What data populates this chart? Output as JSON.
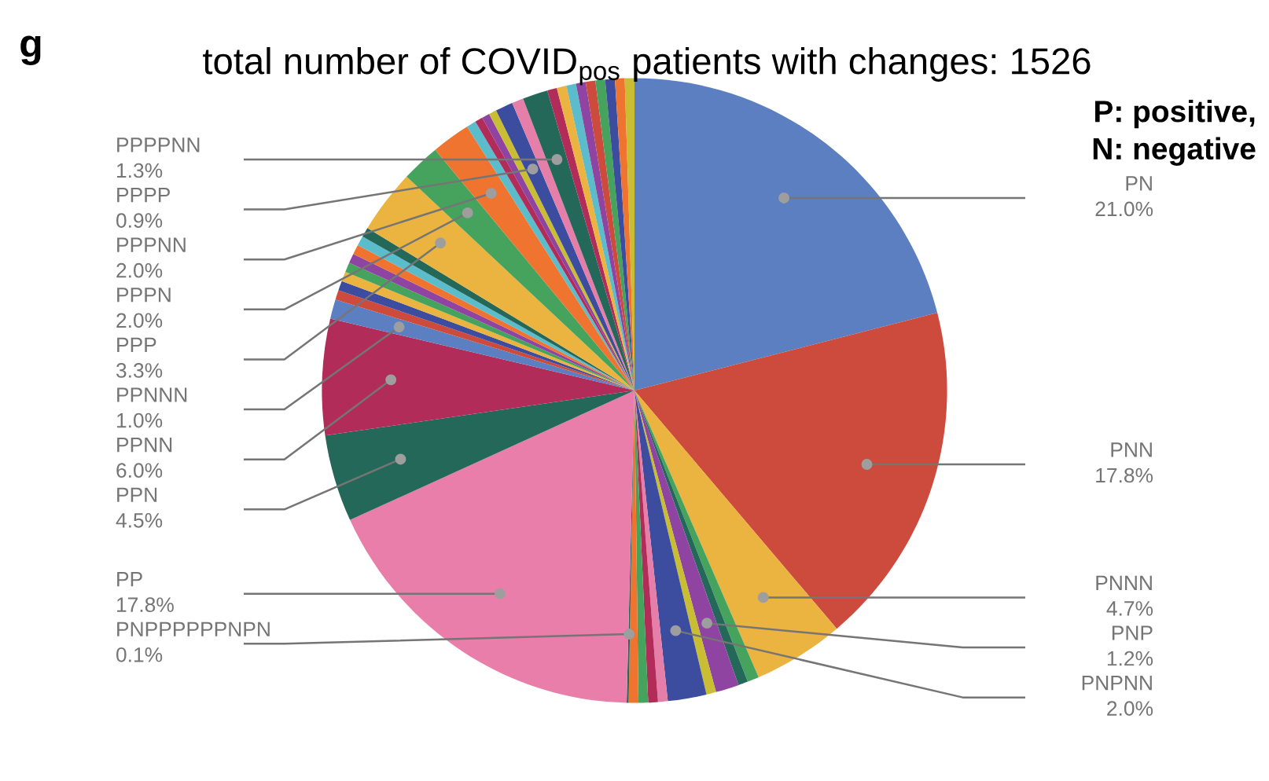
{
  "chart_data": {
    "type": "pie",
    "title": "total number of COVID$_{pos}$ patients with changes: 1526",
    "annotations": [
      "g",
      "P: positive,\nN: negative"
    ],
    "categories": [
      "PN",
      "PNN",
      "PNNN",
      null,
      null,
      "PNP",
      null,
      "PNPNN",
      null,
      null,
      null,
      null,
      "PNPPPPPPNPN",
      "PP",
      "PPN",
      "PPNN",
      "PPNNN",
      null,
      null,
      null,
      null,
      null,
      null,
      null,
      null,
      "PPP",
      "PPPN",
      "PPPNN",
      null,
      null,
      null,
      null,
      "PPPP",
      null,
      "PPPPNN",
      null,
      null,
      null,
      null,
      null,
      null,
      null,
      null,
      null
    ],
    "values": [
      21.0,
      17.8,
      4.7,
      0.6,
      0.5,
      1.2,
      0.5,
      2.0,
      0.5,
      0.5,
      0.5,
      0.5,
      0.1,
      17.8,
      4.5,
      6.0,
      1.0,
      0.5,
      0.5,
      0.5,
      0.5,
      0.5,
      0.5,
      0.5,
      0.5,
      3.3,
      2.0,
      2.0,
      0.5,
      0.4,
      0.4,
      0.4,
      0.9,
      0.6,
      1.3,
      0.5,
      0.5,
      0.5,
      0.5,
      0.5,
      0.5,
      0.5,
      0.5,
      0.5
    ],
    "value_labels": [
      "21.0%",
      "17.8%",
      "4.7%",
      null,
      null,
      "1.2%",
      null,
      "2.0%",
      null,
      null,
      null,
      null,
      "0.1%",
      "17.8%",
      "4.5%",
      "6.0%",
      "1.0%",
      null,
      null,
      null,
      null,
      null,
      null,
      null,
      null,
      "3.3%",
      "2.0%",
      "2.0%",
      null,
      null,
      null,
      null,
      "0.9%",
      null,
      "1.3%",
      null,
      null,
      null,
      null,
      null,
      null,
      null,
      null,
      null
    ],
    "colors": [
      "#5b7fc0",
      "#cd4b3c",
      "#ebb33f",
      "#46a35e",
      "#24685a",
      "#8e44a0",
      "#c9bd34",
      "#3c4da0",
      "#e57ea8",
      "#b22c5a",
      "#46a35e",
      "#ee7430",
      "#24685a",
      "#e87ea9",
      "#24685a",
      "#b22c5a",
      "#5b7fc0",
      "#cd4b3c",
      "#3c4da0",
      "#ebb33f",
      "#46a35e",
      "#8e44a0",
      "#ee7430",
      "#5bbccb",
      "#24685a",
      "#ebb33f",
      "#46a35e",
      "#ee7430",
      "#5bbccb",
      "#b22c5a",
      "#8e44a0",
      "#c9bd34",
      "#3c4da0",
      "#e57ea8",
      "#24685a",
      "#b22c5a",
      "#ebb33f",
      "#5bbccb",
      "#8e44a0",
      "#cd4b3c",
      "#46a35e",
      "#3c4da0",
      "#ee7430",
      "#c9bd34"
    ]
  }
}
